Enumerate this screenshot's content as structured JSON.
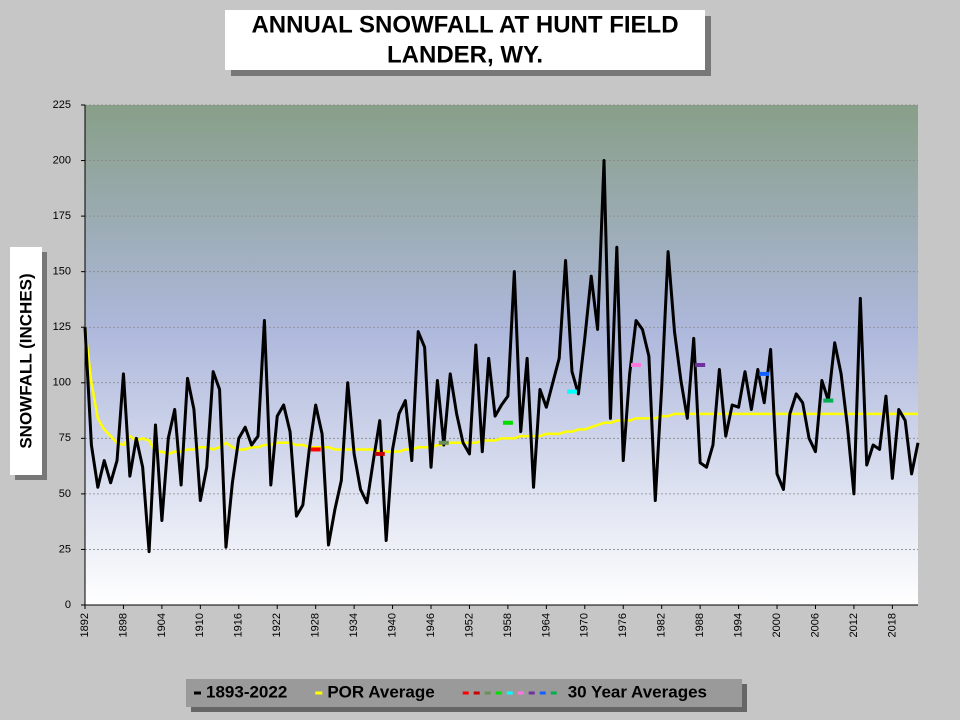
{
  "chart_data": {
    "type": "line",
    "title": "ANNUAL SNOWFALL AT HUNT FIELD",
    "subtitle": "LANDER, WY.",
    "y_label": "SNOWFALL  (INCHES)",
    "xlim": [
      1892,
      2022
    ],
    "xticks": [
      1892,
      1898,
      1904,
      1910,
      1916,
      1922,
      1928,
      1934,
      1940,
      1946,
      1952,
      1958,
      1964,
      1970,
      1976,
      1982,
      1988,
      1994,
      2000,
      2006,
      2012,
      2018
    ],
    "ylim": [
      0,
      225
    ],
    "yticks": [
      0,
      25,
      50,
      75,
      100,
      125,
      150,
      175,
      200,
      225
    ],
    "grid": true,
    "legend": "bottom",
    "x": [
      1892,
      1893,
      1894,
      1895,
      1896,
      1897,
      1898,
      1899,
      1900,
      1901,
      1902,
      1903,
      1904,
      1905,
      1906,
      1907,
      1908,
      1909,
      1910,
      1911,
      1912,
      1913,
      1914,
      1915,
      1916,
      1917,
      1918,
      1919,
      1920,
      1921,
      1922,
      1923,
      1924,
      1925,
      1926,
      1927,
      1928,
      1929,
      1930,
      1931,
      1932,
      1933,
      1934,
      1935,
      1936,
      1937,
      1938,
      1939,
      1940,
      1941,
      1942,
      1943,
      1944,
      1945,
      1946,
      1947,
      1948,
      1949,
      1950,
      1951,
      1952,
      1953,
      1954,
      1955,
      1956,
      1957,
      1958,
      1959,
      1960,
      1961,
      1962,
      1963,
      1964,
      1965,
      1966,
      1967,
      1968,
      1969,
      1970,
      1971,
      1972,
      1973,
      1974,
      1975,
      1976,
      1977,
      1978,
      1979,
      1980,
      1981,
      1982,
      1983,
      1984,
      1985,
      1986,
      1987,
      1988,
      1989,
      1990,
      1991,
      1992,
      1993,
      1994,
      1995,
      1996,
      1997,
      1998,
      1999,
      2000,
      2001,
      2002,
      2003,
      2004,
      2005,
      2006,
      2007,
      2008,
      2009,
      2010,
      2011,
      2012,
      2013,
      2014,
      2015,
      2016,
      2017,
      2018,
      2019,
      2020,
      2021,
      2022
    ],
    "series": [
      {
        "name": "1893-2022",
        "color": "#000000",
        "values": [
          125,
          72,
          53,
          65,
          55,
          65,
          104,
          58,
          75,
          62,
          24,
          81,
          38,
          75,
          88,
          54,
          102,
          88,
          47,
          62,
          105,
          97,
          26,
          55,
          75,
          80,
          72,
          76,
          128,
          54,
          85,
          90,
          78,
          40,
          45,
          70,
          90,
          77,
          27,
          43,
          56,
          100,
          68,
          52,
          46,
          65,
          83,
          29,
          70,
          86,
          92,
          65,
          123,
          116,
          62,
          101,
          72,
          104,
          86,
          73,
          68,
          117,
          69,
          111,
          85,
          90,
          94,
          150,
          78,
          111,
          53,
          97,
          89,
          100,
          111,
          155,
          105,
          95,
          120,
          148,
          124,
          200,
          84,
          161,
          65,
          104,
          128,
          124,
          112,
          47,
          98,
          159,
          123,
          101,
          84,
          120,
          64,
          62,
          72,
          106,
          76,
          90,
          89,
          105,
          88,
          106,
          91,
          115,
          59,
          52,
          86,
          95,
          91,
          75,
          69,
          101,
          92,
          118,
          104,
          80,
          50,
          138,
          63,
          72,
          70,
          94,
          57,
          88,
          83,
          59,
          73
        ]
      },
      {
        "name": "POR Average",
        "color": "#ffff00",
        "values": [
          125,
          100,
          84,
          79,
          76,
          73,
          72,
          76,
          74,
          75,
          74,
          69,
          69,
          68,
          69,
          69,
          70,
          70,
          71,
          71,
          70,
          71,
          73,
          71,
          70,
          70,
          71,
          71,
          72,
          72,
          73,
          73,
          73,
          72,
          72,
          71,
          71,
          71,
          71,
          70,
          70,
          70,
          70,
          70,
          70,
          70,
          69,
          69,
          69,
          69,
          70,
          70,
          71,
          71,
          71,
          72,
          72,
          73,
          73,
          73,
          73,
          73,
          74,
          74,
          74,
          75,
          75,
          75,
          76,
          76,
          76,
          76,
          77,
          77,
          77,
          78,
          78,
          79,
          79,
          80,
          81,
          82,
          82,
          83,
          83,
          83,
          84,
          84,
          84,
          84,
          85,
          85,
          86,
          86,
          86,
          86,
          86,
          86,
          86,
          86,
          86,
          86,
          86,
          86,
          86,
          86,
          86,
          86,
          86,
          86,
          86,
          86,
          86,
          86,
          86,
          86,
          86,
          86,
          86,
          86,
          86,
          86,
          86,
          86,
          86,
          86,
          86,
          86,
          86,
          86,
          86
        ]
      },
      {
        "name": "30 Year Averages",
        "type": "dash",
        "x": [
          1928,
          1938,
          1948,
          1958,
          1968,
          1978,
          1988,
          1998,
          2008
        ],
        "values": [
          70,
          68,
          73,
          82,
          96,
          108,
          108,
          104,
          92
        ],
        "colors": [
          "#ff0000",
          "#cc0000",
          "#6b8e5a",
          "#00dd00",
          "#00ffff",
          "#ff77dd",
          "#7030a0",
          "#1060ff",
          "#00b050"
        ]
      }
    ]
  }
}
